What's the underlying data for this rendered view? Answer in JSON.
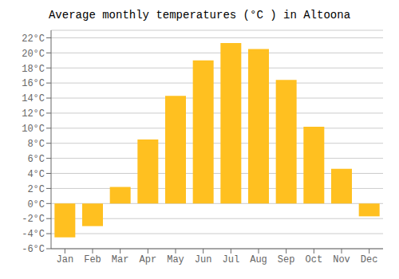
{
  "chart_data": {
    "type": "bar",
    "title": "Average monthly temperatures (°C ) in Altoona",
    "categories": [
      "Jan",
      "Feb",
      "Mar",
      "Apr",
      "May",
      "Jun",
      "Jul",
      "Aug",
      "Sep",
      "Oct",
      "Nov",
      "Dec"
    ],
    "values": [
      -4.5,
      -3.0,
      2.2,
      8.5,
      14.3,
      19.0,
      21.3,
      20.5,
      16.4,
      10.2,
      4.6,
      -1.7
    ],
    "color": "#FFC020",
    "ylim": [
      -6,
      23
    ],
    "yticks": [
      {
        "value": -6,
        "label": "-6°C"
      },
      {
        "value": -4,
        "label": "-4°C"
      },
      {
        "value": -2,
        "label": "-2°C"
      },
      {
        "value": 0,
        "label": "0°C"
      },
      {
        "value": 2,
        "label": "2°C"
      },
      {
        "value": 4,
        "label": "4°C"
      },
      {
        "value": 6,
        "label": "6°C"
      },
      {
        "value": 8,
        "label": "8°C"
      },
      {
        "value": 10,
        "label": "10°C"
      },
      {
        "value": 12,
        "label": "12°C"
      },
      {
        "value": 14,
        "label": "14°C"
      },
      {
        "value": 16,
        "label": "16°C"
      },
      {
        "value": 18,
        "label": "18°C"
      },
      {
        "value": 20,
        "label": "20°C"
      },
      {
        "value": 22,
        "label": "22°C"
      }
    ],
    "grid": true
  }
}
